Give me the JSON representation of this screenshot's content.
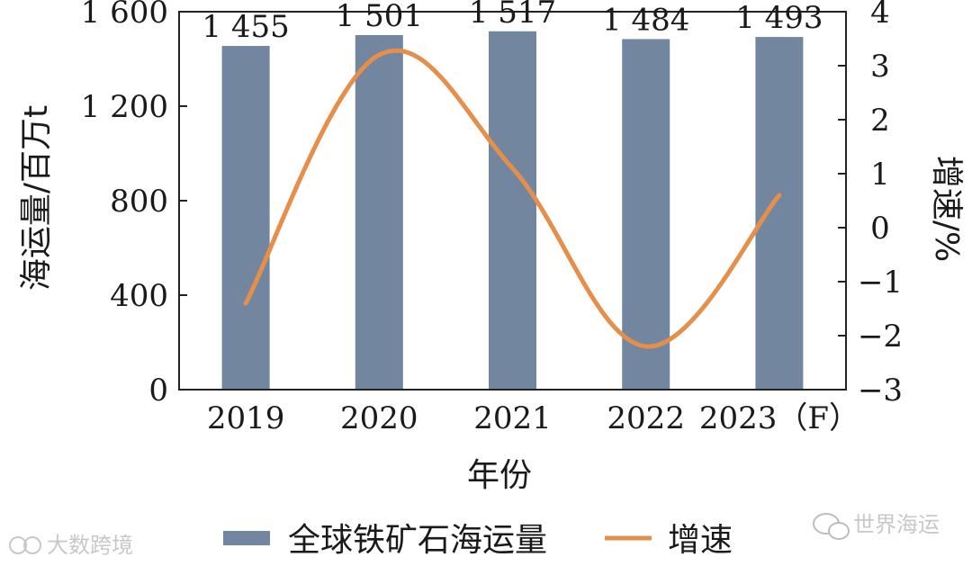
{
  "chart_data": {
    "type": "bar+line",
    "categories": [
      "2019",
      "2020",
      "2021",
      "2022",
      "2023（F）"
    ],
    "series": [
      {
        "name": "全球铁矿石海运量",
        "type": "bar",
        "axis": "left",
        "color": "#72869f",
        "values": [
          1455,
          1501,
          1517,
          1484,
          1493
        ],
        "labels": [
          "1 455",
          "1 501",
          "1 517",
          "1 484",
          "1 493"
        ]
      },
      {
        "name": "增速",
        "type": "line",
        "axis": "right",
        "color": "#e58f4a",
        "values": [
          -1.4,
          3.2,
          1.1,
          -2.2,
          0.6
        ]
      }
    ],
    "xlabel": "年份",
    "ylabel": "海运量/百万t",
    "y2label": "增速/%",
    "ylim": [
      0,
      1600
    ],
    "yticks": [
      0,
      400,
      800,
      1200,
      1600
    ],
    "ytick_labels": [
      "0",
      "400",
      "800",
      "1 200",
      "1 600"
    ],
    "y2lim": [
      -3,
      4
    ],
    "y2ticks": [
      -3,
      -2,
      -1,
      0,
      1,
      2,
      3,
      4
    ],
    "y2tick_labels": [
      "−3",
      "−2",
      "−1",
      "0",
      "1",
      "2",
      "3",
      "4"
    ],
    "legend_position": "bottom"
  },
  "watermarks": {
    "left": "大数跨境",
    "right": "世界海运"
  }
}
